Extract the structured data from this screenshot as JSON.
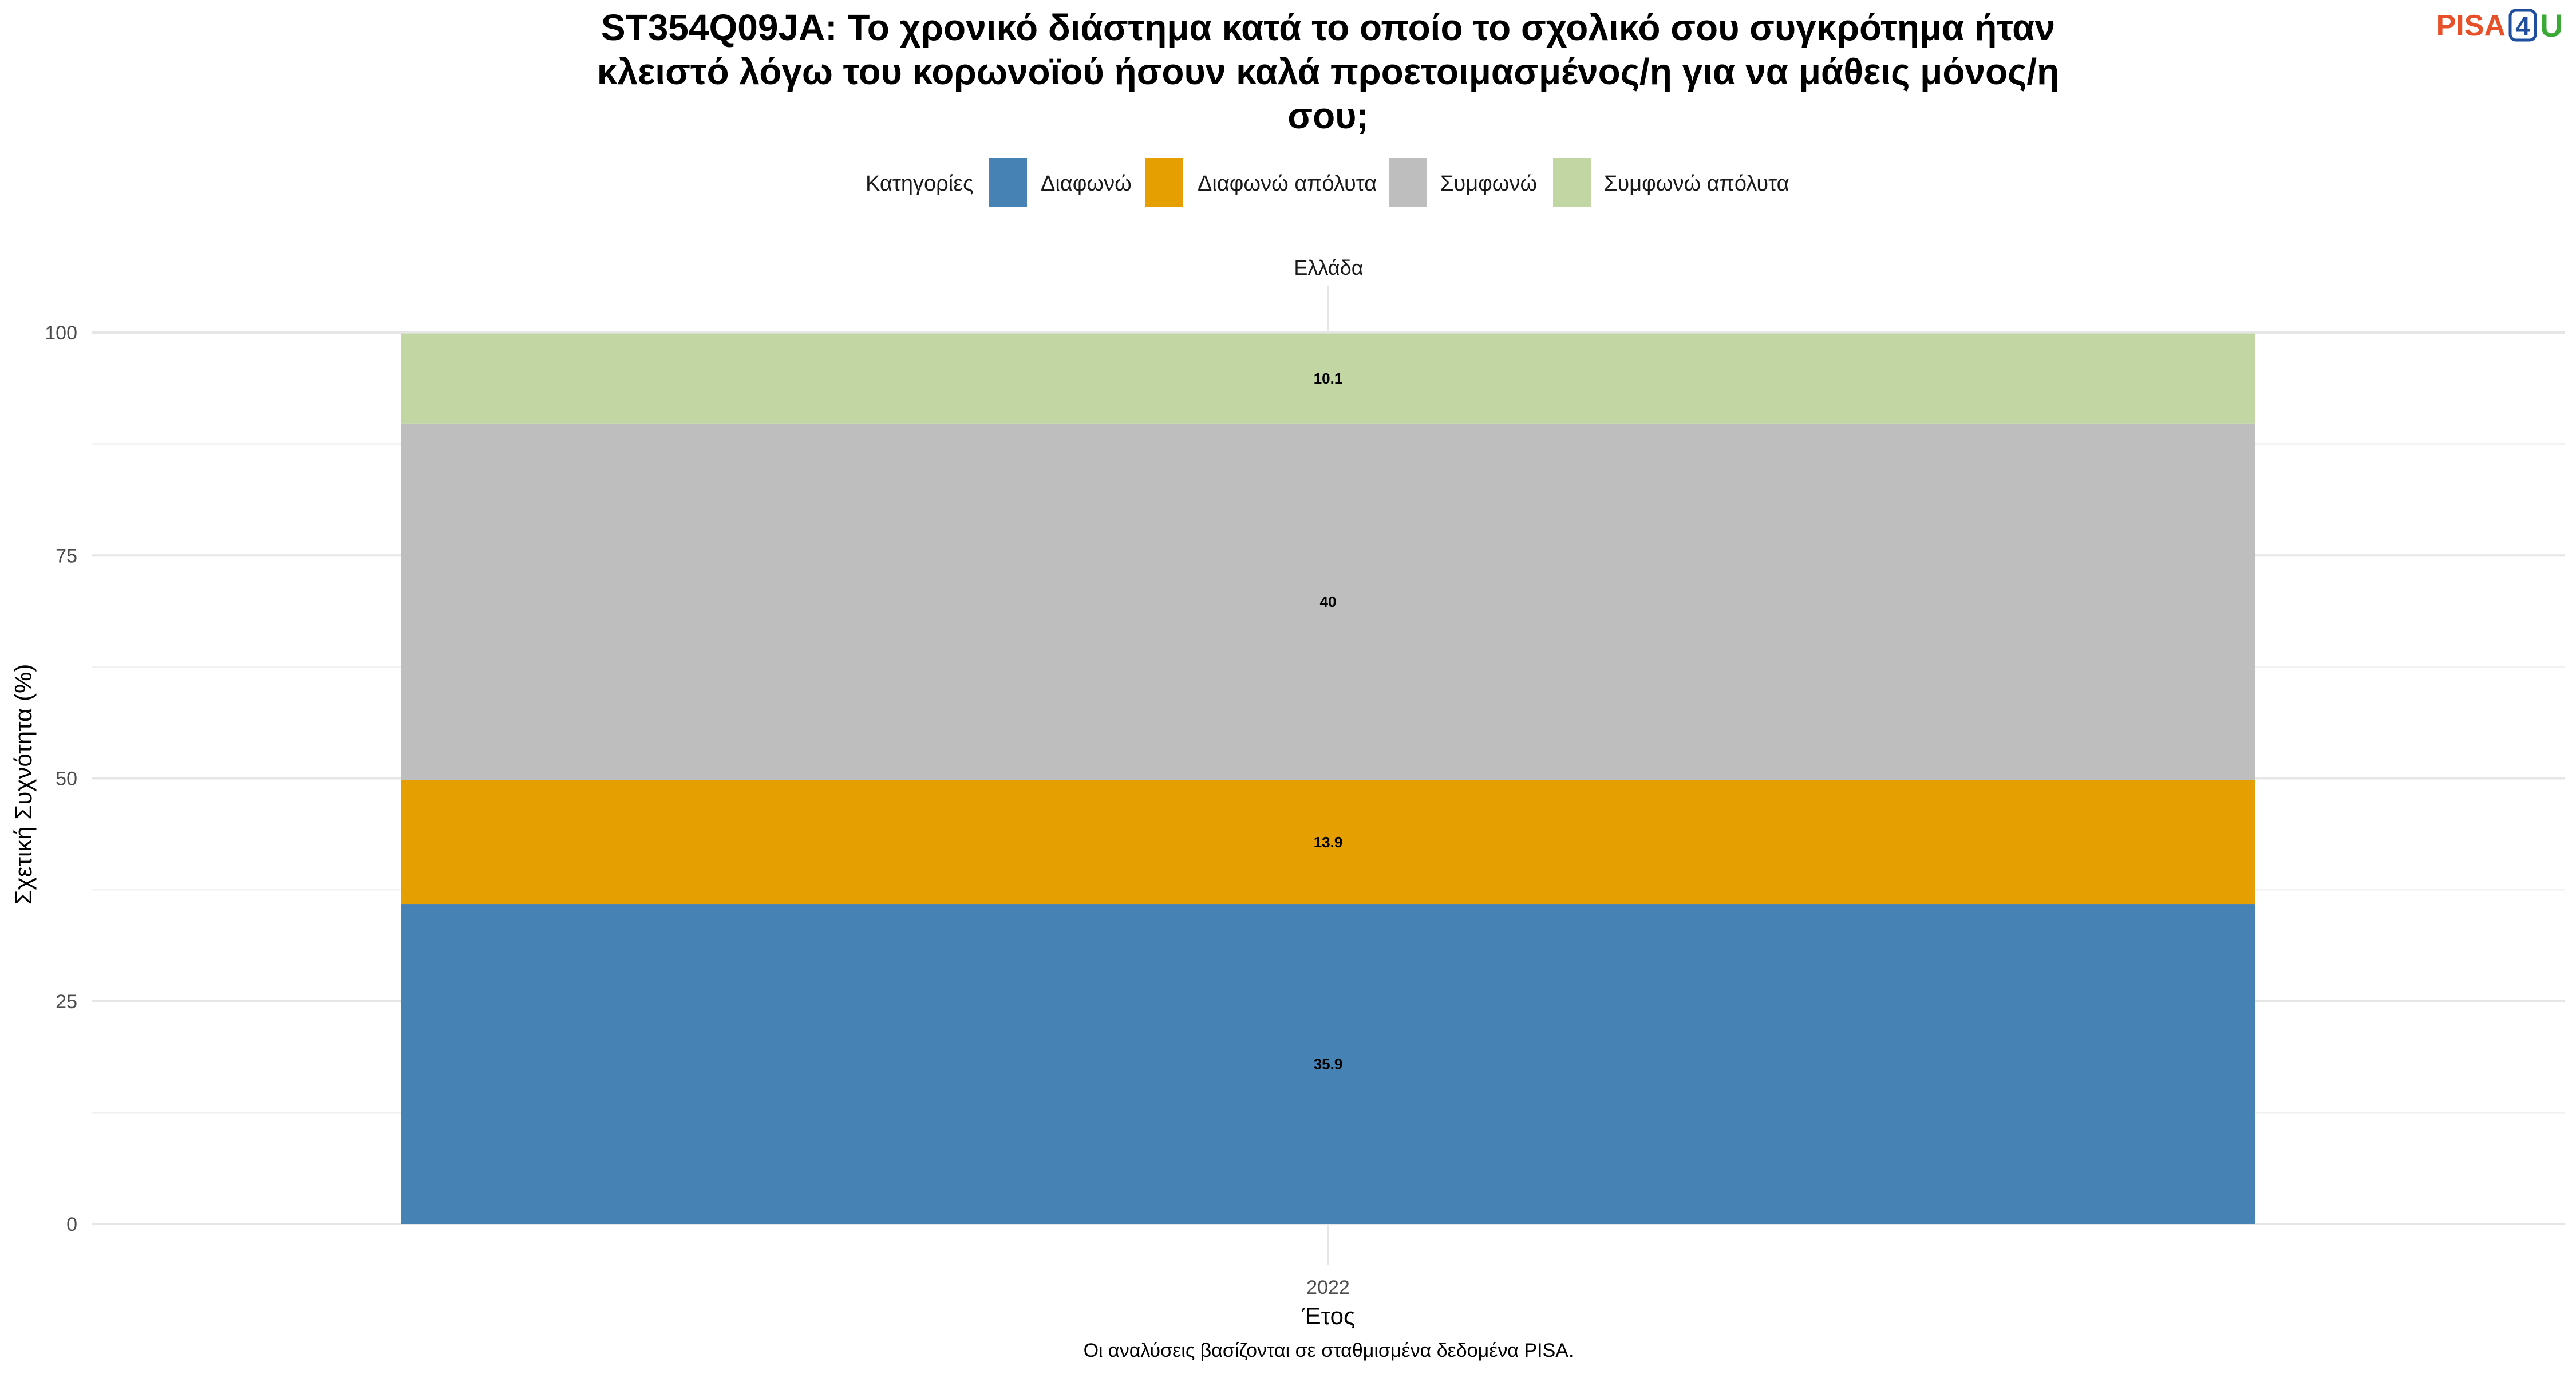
{
  "title_lines": [
    "ST354Q09JA: Το χρονικό διάστημα κατά το οποίο το σχολικό σου συγκρότημα ήταν",
    "κλειστό λόγω του κορωνοϊού ήσουν καλά προετοιμασμένος/η για να μάθεις μόνος/η",
    "σου;"
  ],
  "logo": {
    "part1": "PISA",
    "part2": "4",
    "part3": "U",
    "colors": {
      "part1": "#e8502a",
      "part2": "#1f4e9e",
      "part3": "#3aa935"
    }
  },
  "legend": {
    "title": "Κατηγορίες",
    "items": [
      {
        "label": "Διαφωνώ",
        "color": "#4682b4"
      },
      {
        "label": "Διαφωνώ απόλυτα",
        "color": "#e69f00"
      },
      {
        "label": "Συμφωνώ",
        "color": "#bebebe"
      },
      {
        "label": "Συμφωνώ απόλυτα",
        "color": "#c2d6a4"
      }
    ],
    "placement": "top-center"
  },
  "caption": "Οι αναλύσεις βασίζονται σε σταθμισμένα δεδομένα PISA.",
  "chart_data": {
    "type": "bar",
    "stacked": true,
    "facet": "Ελλάδα",
    "title": "ST354Q09JA: Το χρονικό διάστημα κατά το οποίο το σχολικό σου συγκρότημα ήταν κλειστό λόγω του κορωνοϊού ήσουν καλά προετοιμασμένος/η για να μάθεις μόνος/η σου;",
    "xlabel": "Έτος",
    "ylabel": "Σχετική Συχνότητα (%)",
    "categories": [
      "2022"
    ],
    "series": [
      {
        "name": "Διαφωνώ",
        "values": [
          35.9
        ],
        "labels": [
          "35.9"
        ],
        "color": "#4682b4"
      },
      {
        "name": "Διαφωνώ απόλυτα",
        "values": [
          13.9
        ],
        "labels": [
          "13.9"
        ],
        "color": "#e69f00"
      },
      {
        "name": "Συμφωνώ",
        "values": [
          40
        ],
        "labels": [
          "40"
        ],
        "color": "#bebebe"
      },
      {
        "name": "Συμφωνώ απόλυτα",
        "values": [
          10.1
        ],
        "labels": [
          "10.1"
        ],
        "color": "#c2d6a4"
      }
    ],
    "ylim": [
      0,
      100
    ],
    "yticks": [
      0,
      25,
      50,
      75,
      100
    ],
    "ytick_labels": [
      "0",
      "25",
      "50",
      "75",
      "100"
    ],
    "grid": true
  }
}
